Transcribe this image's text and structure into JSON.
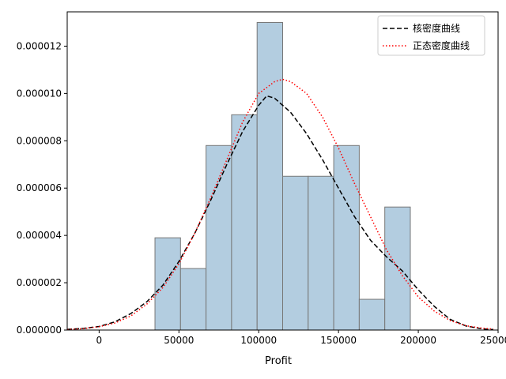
{
  "chart_data": {
    "type": "bar",
    "xlabel": "Profit",
    "ylabel": "",
    "xlim": [
      -20000,
      250000
    ],
    "ylim": [
      0,
      1.345e-05
    ],
    "grid": false,
    "legend_position": "top-right",
    "x_ticks": [
      0,
      50000,
      100000,
      150000,
      200000,
      250000
    ],
    "x_tick_labels": [
      "0",
      "50000",
      "100000",
      "150000",
      "200000",
      "250000"
    ],
    "y_ticks": [
      0,
      2e-06,
      4e-06,
      6e-06,
      8e-06,
      1e-05,
      1.2e-05
    ],
    "y_tick_labels": [
      "0.000000",
      "0.000002",
      "0.000004",
      "0.000006",
      "0.000008",
      "0.000010",
      "0.000012"
    ],
    "histogram": {
      "bin_edges": [
        35000,
        51000,
        67000,
        83000,
        99000,
        115000,
        131000,
        147000,
        163000,
        179000,
        195000
      ],
      "densities": [
        3.9e-06,
        2.6e-06,
        7.8e-06,
        9.1e-06,
        1.3e-05,
        6.5e-06,
        6.5e-06,
        7.8e-06,
        1.3e-06,
        5.2e-06
      ],
      "fill_color": "#b3cde0",
      "edge_color": "#777777"
    },
    "series": [
      {
        "name": "核密度曲线",
        "style": "dashed",
        "color": "#000000",
        "x": [
          -20000,
          -10000,
          0,
          10000,
          20000,
          30000,
          40000,
          50000,
          60000,
          70000,
          80000,
          90000,
          100000,
          105000,
          110000,
          120000,
          130000,
          140000,
          150000,
          160000,
          170000,
          180000,
          190000,
          200000,
          210000,
          220000,
          230000,
          240000,
          247000
        ],
        "y": [
          3e-08,
          7e-08,
          1.5e-07,
          3.5e-07,
          7e-07,
          1.2e-06,
          1.9e-06,
          2.9e-06,
          4.1e-06,
          5.5e-06,
          7e-06,
          8.4e-06,
          9.5e-06,
          9.9e-06,
          9.8e-06,
          9.2e-06,
          8.3e-06,
          7.2e-06,
          6e-06,
          4.8e-06,
          3.8e-06,
          3.1e-06,
          2.5e-06,
          1.7e-06,
          1e-06,
          4.5e-07,
          1.7e-07,
          5e-08,
          2e-08
        ]
      },
      {
        "name": "正态密度曲线",
        "style": "dotted",
        "color": "#ff0000",
        "x": [
          -20000,
          -10000,
          0,
          10000,
          20000,
          30000,
          40000,
          50000,
          60000,
          70000,
          80000,
          90000,
          100000,
          110000,
          115000,
          120000,
          130000,
          140000,
          150000,
          160000,
          170000,
          180000,
          190000,
          200000,
          210000,
          220000,
          230000,
          240000,
          247000
        ],
        "y": [
          2e-08,
          6e-08,
          1.4e-07,
          3e-07,
          6e-07,
          1.1e-06,
          1.8e-06,
          2.8e-06,
          4.1e-06,
          5.6e-06,
          7.2e-06,
          8.8e-06,
          1e-05,
          1.05e-05,
          1.06e-05,
          1.05e-05,
          1e-05,
          9e-06,
          7.7e-06,
          6.2e-06,
          4.8e-06,
          3.4e-06,
          2.3e-06,
          1.4e-06,
          8e-07,
          4e-07,
          1.8e-07,
          8e-08,
          4e-08
        ]
      }
    ]
  }
}
